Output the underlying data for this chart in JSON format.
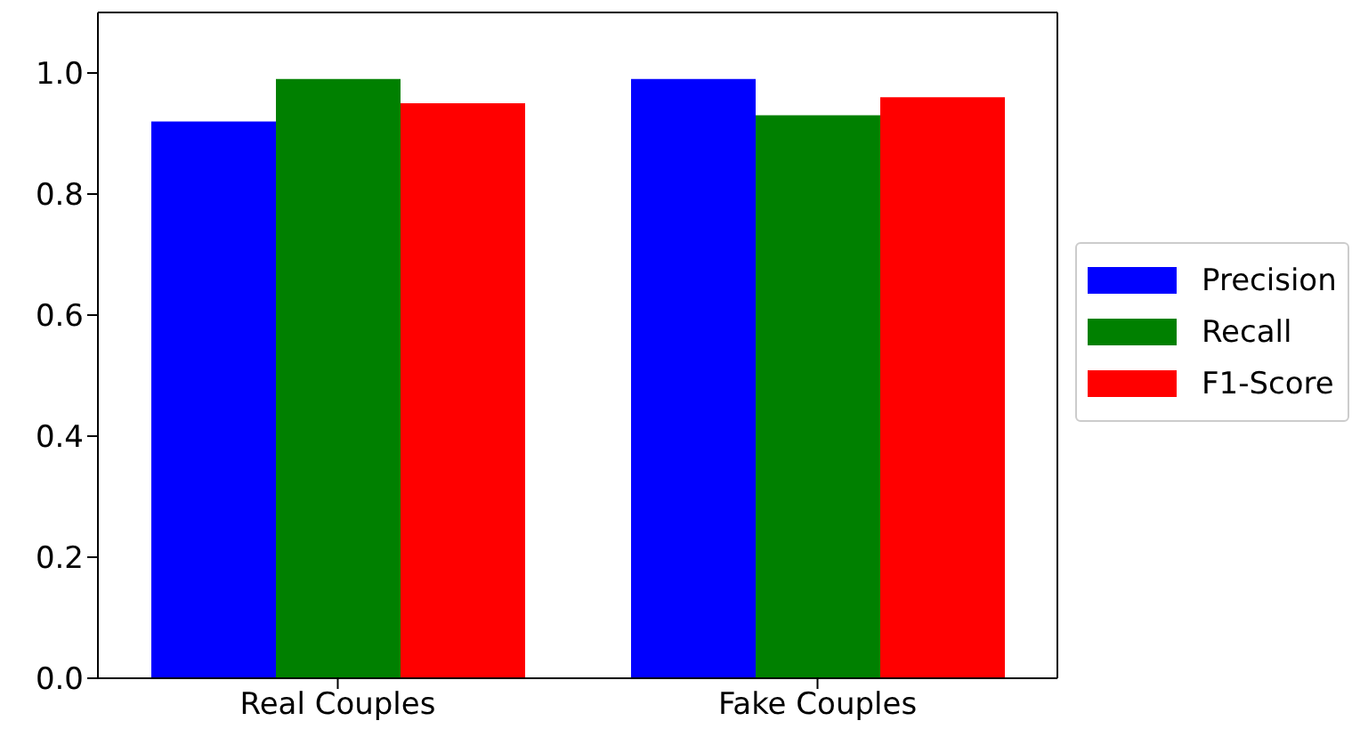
{
  "chart_data": {
    "type": "bar",
    "categories": [
      "Real Couples",
      "Fake Couples"
    ],
    "series": [
      {
        "name": "Precision",
        "color": "#0000ff",
        "values": [
          0.92,
          0.99
        ]
      },
      {
        "name": "Recall",
        "color": "#008000",
        "values": [
          0.99,
          0.93
        ]
      },
      {
        "name": "F1-Score",
        "color": "#ff0000",
        "values": [
          0.95,
          0.96
        ]
      }
    ],
    "ylim": [
      0,
      1.1
    ],
    "yticks": [
      {
        "value": 0,
        "label": "0.0"
      },
      0.2,
      0.4,
      0.6,
      0.8,
      {
        "value": 1,
        "label": "1.0"
      }
    ],
    "grid": false,
    "legend": "right"
  }
}
